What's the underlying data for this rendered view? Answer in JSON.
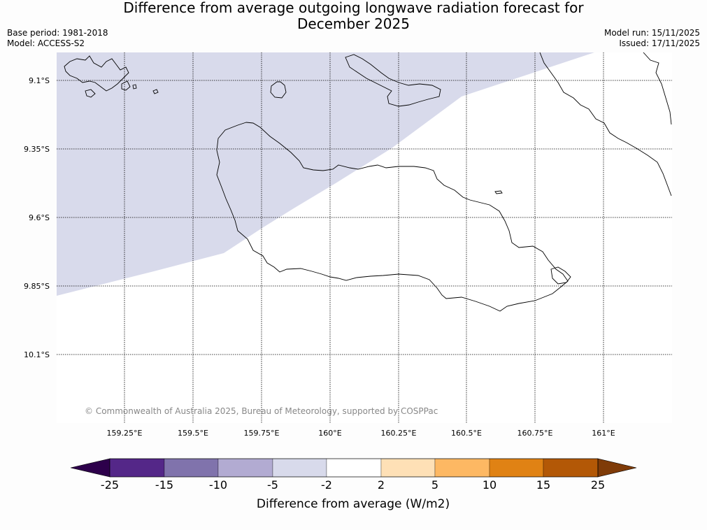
{
  "title": {
    "line1": "Difference from average outgoing longwave radiation forecast for",
    "line2": "December 2025"
  },
  "meta": {
    "base_period": "Base period: 1981-2018",
    "model": "Model: ACCESS-S2",
    "model_run": "Model run: 15/11/2025",
    "issued": "Issued: 17/11/2025"
  },
  "map": {
    "lat_labels": [
      "9.1°S",
      "9.35°S",
      "9.6°S",
      "9.85°S",
      "10.1°S"
    ],
    "lon_labels": [
      "159.25°E",
      "159.5°E",
      "159.75°E",
      "160°E",
      "160.25°E",
      "160.5°E",
      "160.75°E",
      "161°E"
    ],
    "copyright": "© Commonwealth of Australia 2025, Bureau of Meteorology, supported by COSPPac",
    "shaded_category": "-5 to -2"
  },
  "colorbar": {
    "title": "Difference from average (W/m2)",
    "ticks": [
      "-25",
      "-15",
      "-10",
      "-5",
      "-2",
      "2",
      "5",
      "10",
      "15",
      "25"
    ],
    "colors": [
      "#2d004b",
      "#542788",
      "#8073ac",
      "#b2abd2",
      "#d8daeb",
      "#ffffff",
      "#fee0b6",
      "#fdb863",
      "#e08214",
      "#b35806",
      "#7f3b08"
    ]
  }
}
